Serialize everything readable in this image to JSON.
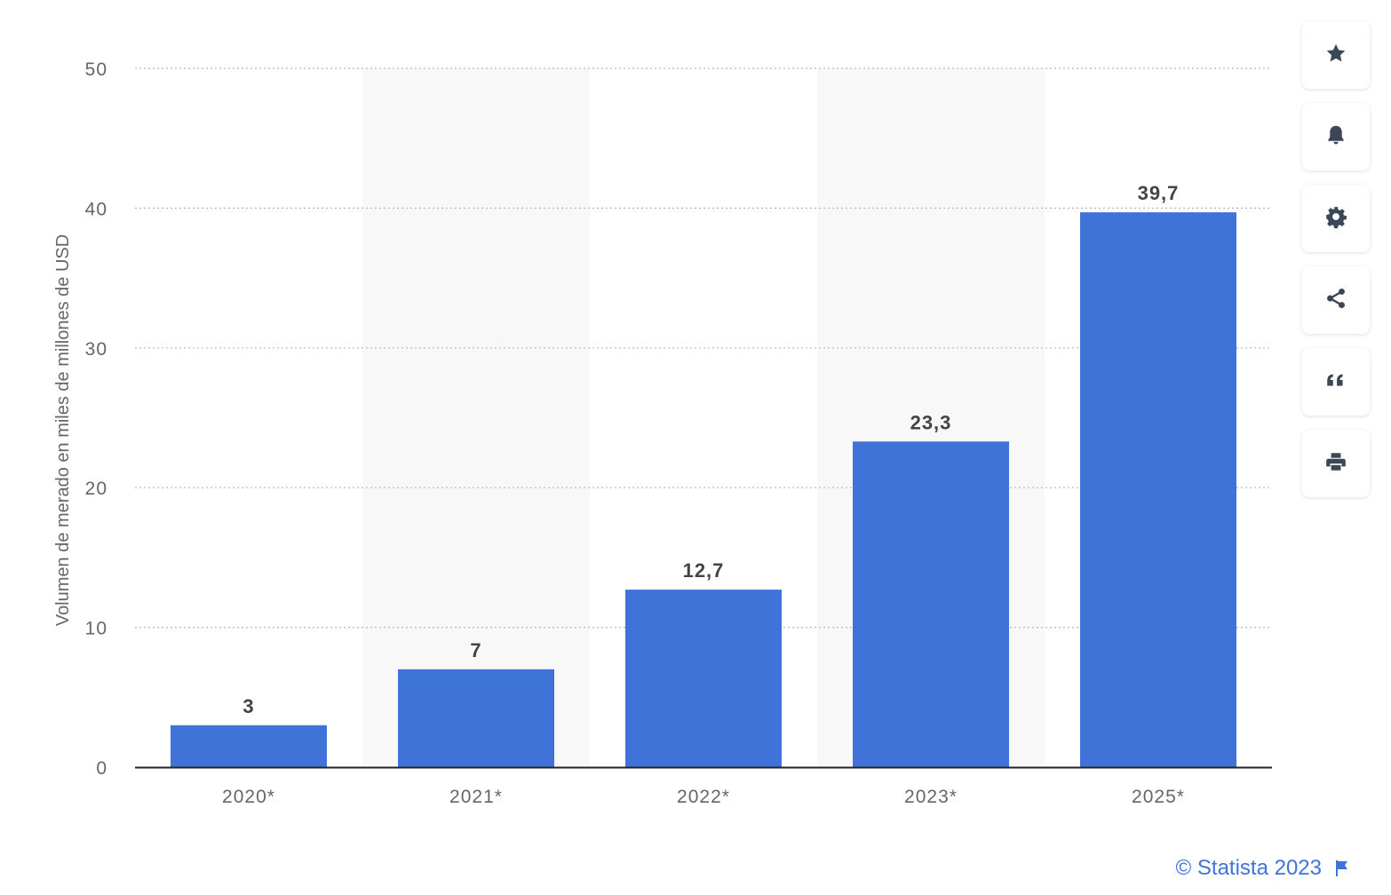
{
  "chart_data": {
    "type": "bar",
    "categories": [
      "2020*",
      "2021*",
      "2022*",
      "2023*",
      "2025*"
    ],
    "values": [
      3,
      7,
      12.7,
      23.3,
      39.7
    ],
    "value_labels": [
      "3",
      "7",
      "12,7",
      "23,3",
      "39,7"
    ],
    "title": "",
    "xlabel": "",
    "ylabel": "Volumen de merado en miles de millones de USD",
    "ylim": [
      0,
      50
    ],
    "yticks": [
      0,
      10,
      20,
      30,
      40,
      50
    ],
    "ytick_labels": [
      "0",
      "10",
      "20",
      "30",
      "40",
      "50"
    ],
    "grid": true,
    "bar_color": "#3f73d8",
    "band_color": "#f8f8f8"
  },
  "toolbar": {
    "items": [
      {
        "icon": "star-icon",
        "action": "favorite"
      },
      {
        "icon": "bell-icon",
        "action": "notifications"
      },
      {
        "icon": "gear-icon",
        "action": "settings"
      },
      {
        "icon": "share-icon",
        "action": "share"
      },
      {
        "icon": "quote-icon",
        "action": "cite"
      },
      {
        "icon": "printer-icon",
        "action": "print"
      }
    ]
  },
  "footer": {
    "credit": "© Statista 2023",
    "flag_icon": "flag-icon"
  }
}
